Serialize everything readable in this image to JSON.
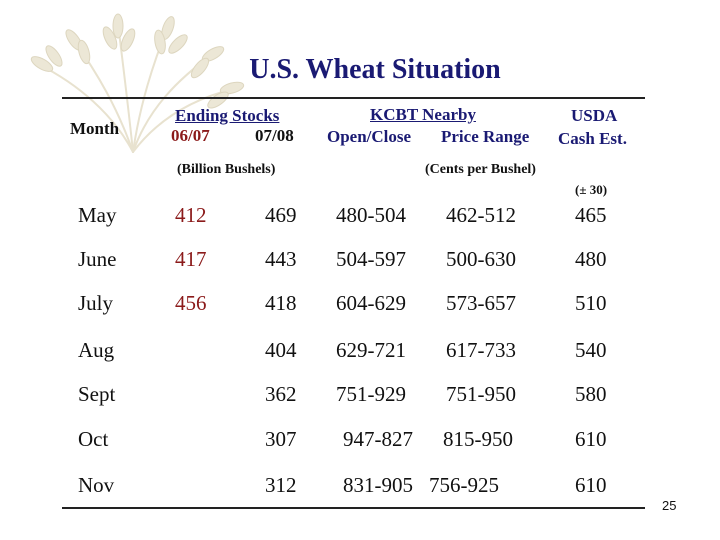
{
  "title": "U.S. Wheat Situation",
  "headers": {
    "month": "Month",
    "ending_stocks": "Ending Stocks",
    "year_a": "06/07",
    "year_b": "07/08",
    "kcbt_nearby": "KCBT Nearby",
    "open_close": "Open/Close",
    "price_range": "Price Range",
    "usda": "USDA",
    "cash_est": "Cash Est.",
    "billion_bushels": "(Billion Bushels)",
    "cents_per_bushel": "(Cents per Bushel)",
    "plus_minus": "(± 30)"
  },
  "rows": [
    {
      "month": "May",
      "stocks_0607": "412",
      "stocks_0708": "469",
      "open_close": "480-504",
      "price_range": "462-512",
      "cash_est": "465"
    },
    {
      "month": "June",
      "stocks_0607": "417",
      "stocks_0708": "443",
      "open_close": "504-597",
      "price_range": "500-630",
      "cash_est": "480"
    },
    {
      "month": "July",
      "stocks_0607": "456",
      "stocks_0708": "418",
      "open_close": "604-629",
      "price_range": "573-657",
      "cash_est": "510"
    },
    {
      "month": "Aug",
      "stocks_0607": "",
      "stocks_0708": "404",
      "open_close": "629-721",
      "price_range": "617-733",
      "cash_est": "540"
    },
    {
      "month": "Sept",
      "stocks_0607": "",
      "stocks_0708": "362",
      "open_close": "751-929",
      "price_range": "751-950",
      "cash_est": "580"
    },
    {
      "month": "Oct",
      "stocks_0607": "",
      "stocks_0708": "307",
      "open_close": "947-827",
      "price_range": "815-950",
      "cash_est": "610"
    },
    {
      "month": "Nov",
      "stocks_0607": "",
      "stocks_0708": "312",
      "open_close": "831-905",
      "price_range": "756-925",
      "cash_est": "610"
    }
  ],
  "page_number": "25",
  "colors": {
    "title": "#1a1a73",
    "stocks_0607": "#8b1a1a",
    "logo": "#e8e2cf"
  },
  "logo_icon": "wheat-sheaf-icon"
}
